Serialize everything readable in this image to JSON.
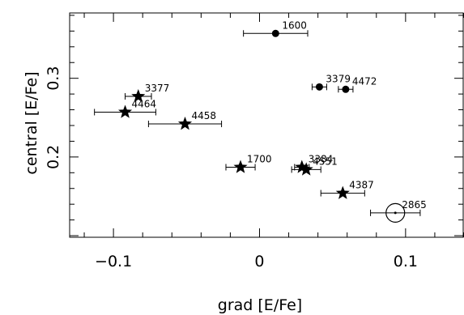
{
  "chart_data": {
    "type": "scatter",
    "title": "",
    "xlabel": "grad [E/Fe]",
    "ylabel": "central [E/Fe]",
    "xlim": [
      -0.13,
      0.14
    ],
    "ylim": [
      0.098,
      0.383
    ],
    "x_ticks": [
      -0.1,
      0,
      0.1
    ],
    "x_tick_labels": [
      "−0.1",
      "0",
      "0.1"
    ],
    "y_ticks": [
      0.2,
      0.3
    ],
    "y_tick_labels": [
      "0.2",
      "0.3"
    ],
    "grid": false,
    "legend": "none",
    "points": [
      {
        "label": "1600",
        "marker": "circle",
        "x": 0.011,
        "y": 0.357,
        "xerr": 0.022
      },
      {
        "label": "3379",
        "marker": "circle",
        "x": 0.041,
        "y": 0.289,
        "xerr": 0.005
      },
      {
        "label": "4472",
        "marker": "circle",
        "x": 0.059,
        "y": 0.286,
        "xerr": 0.005
      },
      {
        "label": "3377",
        "marker": "star",
        "x": -0.083,
        "y": 0.277,
        "xerr": 0.009
      },
      {
        "label": "4464",
        "marker": "star",
        "x": -0.092,
        "y": 0.257,
        "xerr": 0.021
      },
      {
        "label": "4458",
        "marker": "star",
        "x": -0.051,
        "y": 0.242,
        "xerr": 0.025
      },
      {
        "label": "1700",
        "marker": "star",
        "x": -0.013,
        "y": 0.187,
        "xerr": 0.01
      },
      {
        "label": "3384",
        "marker": "star",
        "x": 0.029,
        "y": 0.187,
        "xerr": 0.005
      },
      {
        "label": "4551",
        "marker": "star",
        "x": 0.032,
        "y": 0.184,
        "xerr": 0.01
      },
      {
        "label": "4387",
        "marker": "star",
        "x": 0.057,
        "y": 0.154,
        "xerr": 0.015
      },
      {
        "label": "2865",
        "marker": "open-circle",
        "x": 0.093,
        "y": 0.129,
        "xerr": 0.017
      }
    ]
  }
}
